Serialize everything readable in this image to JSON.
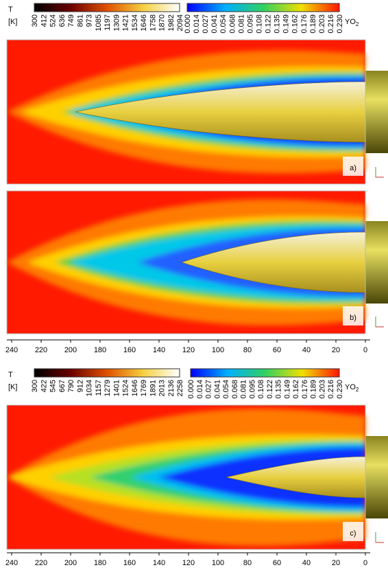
{
  "legend_top": {
    "temperature": {
      "title": "T",
      "unit": "[K]",
      "ticks": [
        "300",
        "412",
        "524",
        "636",
        "749",
        "861",
        "973",
        "1085",
        "1197",
        "1309",
        "1421",
        "1534",
        "1646",
        "1758",
        "1870",
        "1982",
        "2094"
      ]
    },
    "oxygen": {
      "title": "YO",
      "subscript": "2",
      "ticks": [
        "0.000",
        "0.014",
        "0.027",
        "0.041",
        "0.054",
        "0.068",
        "0.081",
        "0.095",
        "0.108",
        "0.122",
        "0.135",
        "0.149",
        "0.162",
        "0.176",
        "0.189",
        "0.203",
        "0.216",
        "0.230"
      ]
    }
  },
  "panels_top": [
    {
      "label": "a)"
    },
    {
      "label": "b)"
    }
  ],
  "axis_top": {
    "ticks": [
      "240",
      "220",
      "200",
      "180",
      "160",
      "140",
      "120",
      "100",
      "80",
      "60",
      "40",
      "20",
      "0"
    ]
  },
  "legend_bottom": {
    "temperature": {
      "title": "T",
      "unit": "[K]",
      "ticks": [
        "300",
        "422",
        "545",
        "667",
        "790",
        "912",
        "1034",
        "1157",
        "1279",
        "1401",
        "1524",
        "1646",
        "1769",
        "1891",
        "2013",
        "2136",
        "2258"
      ]
    },
    "oxygen": {
      "title": "YO",
      "subscript": "2",
      "ticks": [
        "0.000",
        "0.014",
        "0.027",
        "0.041",
        "0.054",
        "0.068",
        "0.081",
        "0.095",
        "0.108",
        "0.122",
        "0.135",
        "0.149",
        "0.162",
        "0.176",
        "0.189",
        "0.203",
        "0.216",
        "0.230"
      ]
    }
  },
  "panels_bottom": [
    {
      "label": "c)"
    }
  ],
  "axis_bottom": {
    "ticks": [
      "240",
      "220",
      "200",
      "180",
      "160",
      "140",
      "120",
      "100",
      "80",
      "60",
      "40",
      "20",
      "0"
    ]
  }
}
